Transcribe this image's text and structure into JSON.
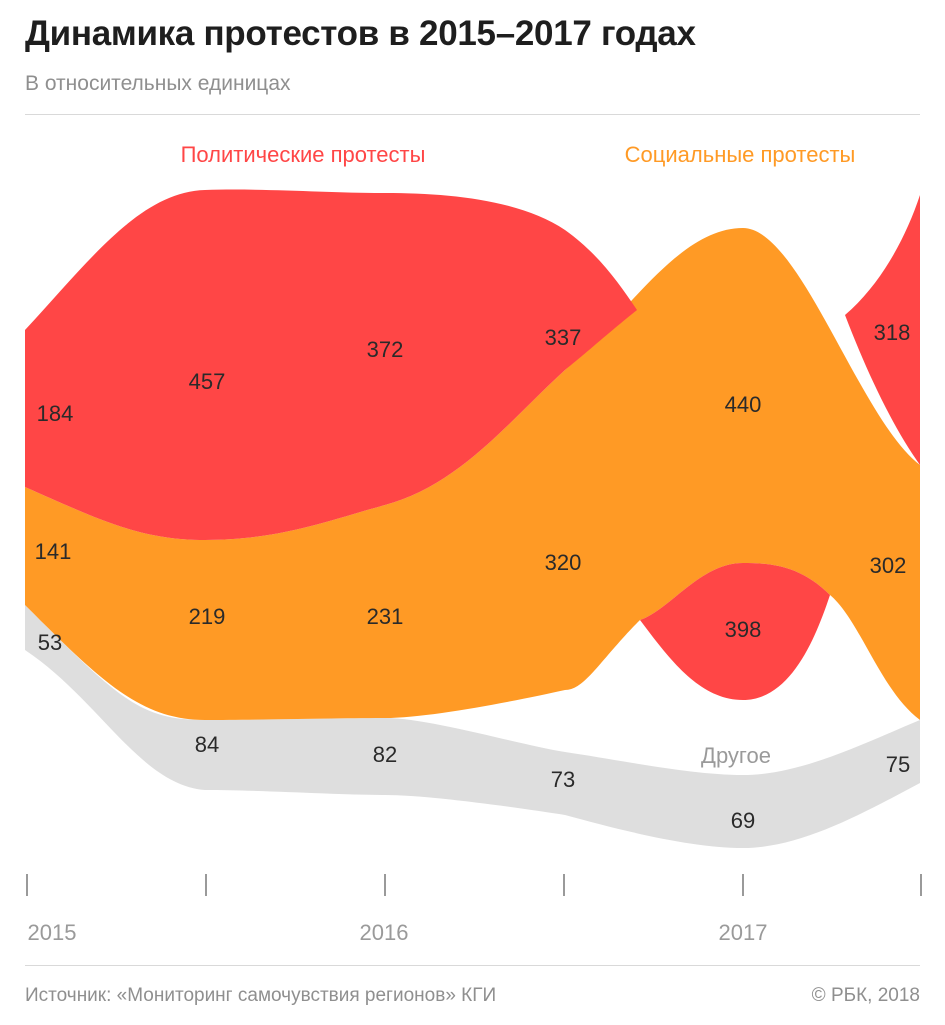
{
  "title": "Динамика протестов в 2015–2017 годах",
  "subtitle": "В относительных единицах",
  "source": "Источник: «Мониторинг самочувствия регионов» КГИ",
  "copyright": "© РБК, 2018",
  "colors": {
    "political": "#ff4646",
    "social": "#ff9a25",
    "other": "#dedede",
    "tick": "#9a9a9a",
    "axis_label": "#9a9a9a"
  },
  "chart_data": {
    "type": "area",
    "stacking": "streamgraph",
    "x_tick_labels": [
      "2015",
      "2016",
      "2017"
    ],
    "series": [
      {
        "name": "Политические протесты",
        "values": [
          184,
          457,
          372,
          337,
          398,
          318
        ]
      },
      {
        "name": "Социальные протесты",
        "values": [
          141,
          219,
          231,
          320,
          440,
          302
        ]
      },
      {
        "name": "Другое",
        "values": [
          53,
          84,
          82,
          73,
          69,
          75
        ]
      }
    ],
    "value_labels": {
      "political": [
        "184",
        "457",
        "372",
        "337",
        "398",
        "318"
      ],
      "social": [
        "141",
        "219",
        "231",
        "320",
        "440",
        "302"
      ],
      "other": [
        "53",
        "84",
        "82",
        "73",
        "69",
        "75"
      ]
    },
    "legend": "top, inline labels"
  }
}
